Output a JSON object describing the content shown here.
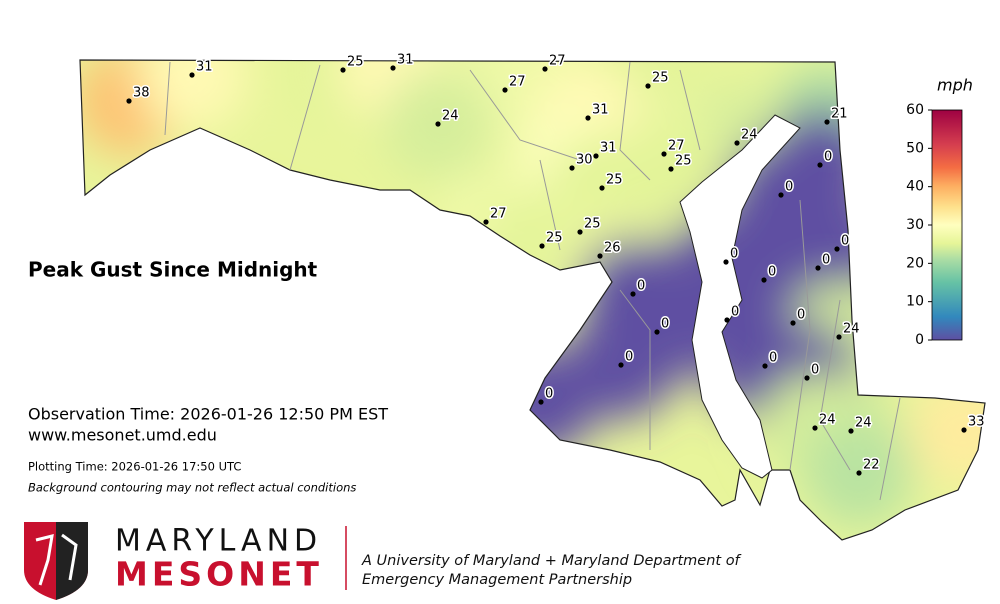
{
  "title": "Peak Gust Since Midnight",
  "observation_time": "Observation Time: 2026-01-26 12:50 PM EST",
  "website": "www.mesonet.umd.edu",
  "plotting_time": "Plotting Time: 2026-01-26 17:50 UTC",
  "disclaimer": "Background contouring may not reflect actual conditions",
  "colorbar": {
    "label": "mph",
    "lim": [
      0,
      60
    ],
    "ticks": [
      0,
      10,
      20,
      30,
      40,
      50,
      60
    ]
  },
  "stations": {
    "values": [
      38,
      31,
      25,
      31,
      27,
      27,
      25,
      24,
      31,
      21,
      24,
      27,
      31,
      30,
      25,
      0,
      25,
      0,
      27,
      25,
      25,
      0,
      26,
      0,
      0,
      0,
      0,
      0,
      0,
      0,
      24,
      0,
      0,
      0,
      0,
      24,
      24,
      33,
      22
    ]
  },
  "logo": {
    "line1": "MARYLAND",
    "line2": "MESONET"
  },
  "partnership": {
    "line1": "A University of Maryland + Maryland Department of",
    "line2": "Emergency Management Partnership"
  }
}
